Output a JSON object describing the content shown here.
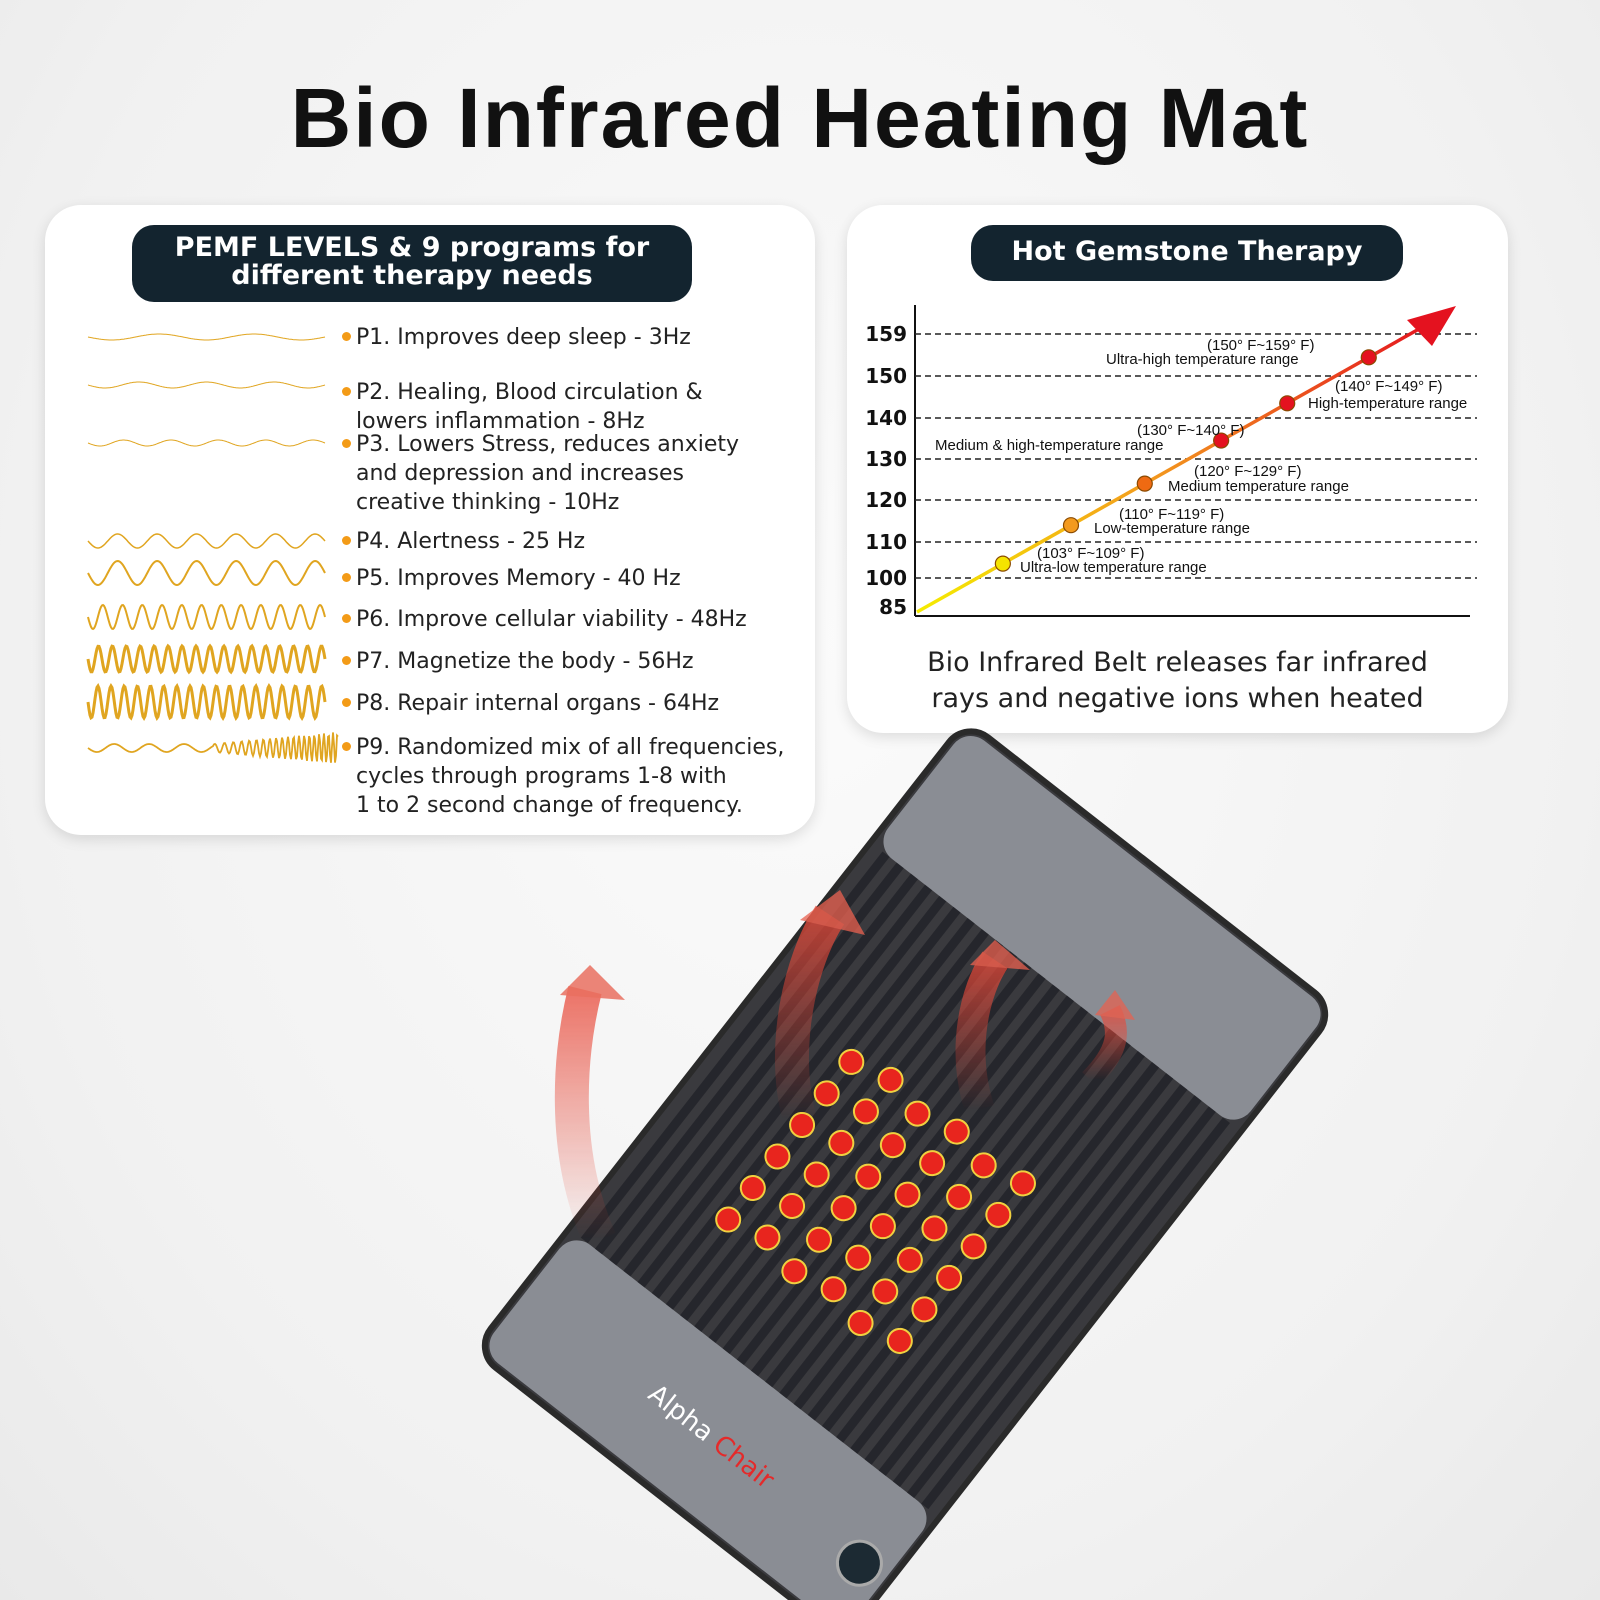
{
  "title": "Bio Infrared Heating Mat",
  "pemf": {
    "heading_line1": "PEMF LEVELS & 9 programs for",
    "heading_line2": "different therapy needs",
    "programs": [
      {
        "lines": [
          "P1. Improves deep sleep - 3Hz"
        ]
      },
      {
        "lines": [
          "P2. Healing, Blood circulation &",
          "lowers inflammation - 8Hz"
        ]
      },
      {
        "lines": [
          "P3. Lowers Stress, reduces anxiety",
          "and depression and increases",
          "creative thinking - 10Hz"
        ]
      },
      {
        "lines": [
          "P4. Alertness - 25 Hz"
        ]
      },
      {
        "lines": [
          "P5. Improves Memory - 40 Hz"
        ]
      },
      {
        "lines": [
          "P6. Improve cellular viability - 48Hz"
        ]
      },
      {
        "lines": [
          "P7. Magnetize the body - 56Hz"
        ]
      },
      {
        "lines": [
          "P8. Repair internal organs - 64Hz"
        ]
      },
      {
        "lines": [
          "P9. Randomized mix of all frequencies,",
          "cycles through programs 1-8 with",
          "1 to 2 second change of frequency."
        ]
      }
    ],
    "wave_color": "#e0a520",
    "bullet_color": "#f39b17"
  },
  "gemstone": {
    "heading": "Hot Gemstone Therapy",
    "caption_line1": "Bio Infrared Belt releases far infrared",
    "caption_line2": "rays and negative ions when heated"
  },
  "chart_data": {
    "type": "line",
    "y_ticks": [
      85,
      100,
      110,
      120,
      130,
      140,
      150,
      159
    ],
    "grid": "dashed horizontal",
    "points": [
      {
        "range": "(103° F~109° F)",
        "name": "Ultra-low temperature range",
        "value": 104,
        "color": "#f5e400"
      },
      {
        "range": "(110° F~119° F)",
        "name": "Low-temperature range",
        "value": 114,
        "color": "#f39a1e"
      },
      {
        "range": "(120° F~129° F)",
        "name": "Medium temperature range",
        "value": 124,
        "color": "#ef6a12"
      },
      {
        "range": "(130° F~140° F)",
        "name": "Medium & high-temperature range",
        "value": 134.5,
        "color": "#e4121f"
      },
      {
        "range": "(140° F~149° F)",
        "name": "High-temperature range",
        "value": 143.5,
        "color": "#e4121f"
      },
      {
        "range": "(150° F~159° F)",
        "name": "Ultra-high temperature range",
        "value": 154,
        "color": "#e4121f"
      }
    ]
  },
  "product": {
    "logo_text": "Alpha Chair"
  }
}
